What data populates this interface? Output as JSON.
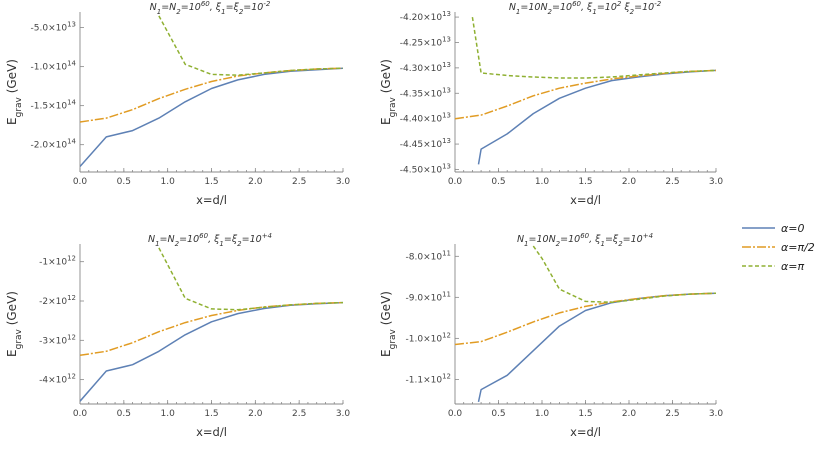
{
  "legend": [
    {
      "label": "α=0",
      "color": "#5E81B5",
      "dash": ""
    },
    {
      "label": "α=π/2",
      "color": "#E19C24",
      "dash": "9,2,2,2"
    },
    {
      "label": "α=π",
      "color": "#8FB032",
      "dash": "4,2.5"
    }
  ],
  "chart_data": [
    {
      "type": "line",
      "title": "N1=N2=10^60,  ξ1=ξ2=10^-2",
      "xlabel": "x=d/l",
      "ylabel": "Egrav (GeV)",
      "xlim": [
        0,
        3
      ],
      "ylim": [
        -235000000000000.0,
        -30000000000000.0
      ],
      "xticks": [
        "0.0",
        "0.5",
        "1.0",
        "1.5",
        "2.0",
        "2.5",
        "3.0"
      ],
      "yticks": [
        {
          "v": -50000000000000.0,
          "m": "-5.0",
          "e": "13"
        },
        {
          "v": -100000000000000.0,
          "m": "-1.0",
          "e": "14"
        },
        {
          "v": -150000000000000.0,
          "m": "-1.5",
          "e": "14"
        },
        {
          "v": -200000000000000.0,
          "m": "-2.0",
          "e": "14"
        }
      ],
      "series": [
        {
          "name": "α=0",
          "x": [
            0,
            0.3,
            0.6,
            0.9,
            1.2,
            1.5,
            1.8,
            2.1,
            2.4,
            2.7,
            3.0
          ],
          "y": [
            -228000000000000.0,
            -190000000000000.0,
            -182000000000000.0,
            -166000000000000.0,
            -145000000000000.0,
            -128000000000000.0,
            -117000000000000.0,
            -110000000000000.0,
            -106000000000000.0,
            -104000000000000.0,
            -102000000000000.0
          ]
        },
        {
          "name": "α=π/2",
          "x": [
            0,
            0.3,
            0.6,
            0.9,
            1.2,
            1.5,
            1.8,
            2.1,
            2.4,
            2.7,
            3.0
          ],
          "y": [
            -171000000000000.0,
            -166000000000000.0,
            -155000000000000.0,
            -141000000000000.0,
            -129000000000000.0,
            -119000000000000.0,
            -112000000000000.0,
            -108000000000000.0,
            -105000000000000.0,
            -103000000000000.0,
            -102000000000000.0
          ]
        },
        {
          "name": "α=π",
          "x": [
            0.9,
            1.2,
            1.5,
            1.8,
            2.1,
            2.4,
            2.7,
            3.0
          ],
          "y": [
            -35000000000000.0,
            -97000000000000.0,
            -110000000000000.0,
            -111000000000000.0,
            -108000000000000.0,
            -105000000000000.0,
            -103000000000000.0,
            -102000000000000.0
          ]
        }
      ]
    },
    {
      "type": "line",
      "title": "N1=10N2=10^60,  ξ1=10^2 ξ2=10^-2",
      "xlabel": "x=d/l",
      "ylabel": "Egrav (GeV)",
      "xlim": [
        0,
        3
      ],
      "ylim": [
        -45050000000000.0,
        -41900000000000.0
      ],
      "xticks": [
        "0.0",
        "0.5",
        "1.0",
        "1.5",
        "2.0",
        "2.5",
        "3.0"
      ],
      "yticks": [
        {
          "v": -42000000000000.0,
          "m": "-4.20",
          "e": "13"
        },
        {
          "v": -42500000000000.0,
          "m": "-4.25",
          "e": "13"
        },
        {
          "v": -43000000000000.0,
          "m": "-4.30",
          "e": "13"
        },
        {
          "v": -43500000000000.0,
          "m": "-4.35",
          "e": "13"
        },
        {
          "v": -44000000000000.0,
          "m": "-4.40",
          "e": "13"
        },
        {
          "v": -44500000000000.0,
          "m": "-4.45",
          "e": "13"
        },
        {
          "v": -45000000000000.0,
          "m": "-4.50",
          "e": "13"
        }
      ],
      "series": [
        {
          "name": "α=0",
          "x": [
            0.27,
            0.3,
            0.6,
            0.9,
            1.2,
            1.5,
            1.8,
            2.1,
            2.4,
            2.7,
            3.0
          ],
          "y": [
            -44900000000000.0,
            -44600000000000.0,
            -44300000000000.0,
            -43900000000000.0,
            -43600000000000.0,
            -43400000000000.0,
            -43250000000000.0,
            -43180000000000.0,
            -43120000000000.0,
            -43080000000000.0,
            -43050000000000.0
          ]
        },
        {
          "name": "α=π/2",
          "x": [
            0,
            0.3,
            0.6,
            0.9,
            1.2,
            1.5,
            1.8,
            2.1,
            2.4,
            2.7,
            3.0
          ],
          "y": [
            -44000000000000.0,
            -43930000000000.0,
            -43750000000000.0,
            -43550000000000.0,
            -43400000000000.0,
            -43300000000000.0,
            -43220000000000.0,
            -43160000000000.0,
            -43110000000000.0,
            -43070000000000.0,
            -43050000000000.0
          ]
        },
        {
          "name": "α=π",
          "x": [
            0.2,
            0.3,
            0.6,
            0.9,
            1.2,
            1.5,
            1.8,
            2.1,
            2.4,
            2.7,
            3.0
          ],
          "y": [
            -42000000000000.0,
            -43100000000000.0,
            -43150000000000.0,
            -43180000000000.0,
            -43200000000000.0,
            -43200000000000.0,
            -43180000000000.0,
            -43140000000000.0,
            -43100000000000.0,
            -43070000000000.0,
            -43050000000000.0
          ]
        }
      ]
    },
    {
      "type": "line",
      "title": "N1=N2=10^60,  ξ1=ξ2=10^+4",
      "xlabel": "x=d/l",
      "ylabel": "Egrav (GeV)",
      "xlim": [
        0,
        3
      ],
      "ylim": [
        -4620000000000.0,
        -550000000000.0
      ],
      "xticks": [
        "0.0",
        "0.5",
        "1.0",
        "1.5",
        "2.0",
        "2.5",
        "3.0"
      ],
      "yticks": [
        {
          "v": -1000000000000.0,
          "m": "-1",
          "e": "12"
        },
        {
          "v": -2000000000000.0,
          "m": "-2",
          "e": "12"
        },
        {
          "v": -3000000000000.0,
          "m": "-3",
          "e": "12"
        },
        {
          "v": -4000000000000.0,
          "m": "-4",
          "e": "12"
        }
      ],
      "series": [
        {
          "name": "α=0",
          "x": [
            0,
            0.3,
            0.6,
            0.9,
            1.2,
            1.5,
            1.8,
            2.1,
            2.4,
            2.7,
            3.0
          ],
          "y": [
            -4550000000000.0,
            -3780000000000.0,
            -3620000000000.0,
            -3280000000000.0,
            -2860000000000.0,
            -2530000000000.0,
            -2320000000000.0,
            -2190000000000.0,
            -2110000000000.0,
            -2070000000000.0,
            -2040000000000.0
          ]
        },
        {
          "name": "α=π/2",
          "x": [
            0,
            0.3,
            0.6,
            0.9,
            1.2,
            1.5,
            1.8,
            2.1,
            2.4,
            2.7,
            3.0
          ],
          "y": [
            -3380000000000.0,
            -3280000000000.0,
            -3060000000000.0,
            -2780000000000.0,
            -2550000000000.0,
            -2370000000000.0,
            -2240000000000.0,
            -2150000000000.0,
            -2100000000000.0,
            -2060000000000.0,
            -2040000000000.0
          ]
        },
        {
          "name": "α=π",
          "x": [
            0.9,
            1.2,
            1.5,
            1.8,
            2.1,
            2.4,
            2.7,
            3.0
          ],
          "y": [
            -650000000000.0,
            -1930000000000.0,
            -2200000000000.0,
            -2220000000000.0,
            -2160000000000.0,
            -2100000000000.0,
            -2060000000000.0,
            -2040000000000.0
          ]
        }
      ]
    },
    {
      "type": "line",
      "title": "N1=10N2=10^60,  ξ1=ξ2=10^+4",
      "xlabel": "x=d/l",
      "ylabel": "Egrav (GeV)",
      "xlim": [
        0,
        3
      ],
      "ylim": [
        -1160000000000.0,
        -770000000000.0
      ],
      "xticks": [
        "0.0",
        "0.5",
        "1.0",
        "1.5",
        "2.0",
        "2.5",
        "3.0"
      ],
      "yticks": [
        {
          "v": -800000000000.0,
          "m": "-8.0",
          "e": "11"
        },
        {
          "v": -900000000000.0,
          "m": "-9.0",
          "e": "11"
        },
        {
          "v": -1000000000000.0,
          "m": "-1.0",
          "e": "12"
        },
        {
          "v": -1100000000000.0,
          "m": "-1.1",
          "e": "12"
        }
      ],
      "series": [
        {
          "name": "α=0",
          "x": [
            0.27,
            0.3,
            0.6,
            0.9,
            1.2,
            1.5,
            1.8,
            2.1,
            2.4,
            2.7,
            3.0
          ],
          "y": [
            -1155000000000.0,
            -1125000000000.0,
            -1090000000000.0,
            -1030000000000.0,
            -970000000000.0,
            -932000000000.0,
            -913000000000.0,
            -903000000000.0,
            -896000000000.0,
            -892000000000.0,
            -890000000000.0
          ]
        },
        {
          "name": "α=π/2",
          "x": [
            0,
            0.3,
            0.6,
            0.9,
            1.2,
            1.5,
            1.8,
            2.1,
            2.4,
            2.7,
            3.0
          ],
          "y": [
            -1015000000000.0,
            -1008000000000.0,
            -985000000000.0,
            -960000000000.0,
            -938000000000.0,
            -922000000000.0,
            -911000000000.0,
            -903000000000.0,
            -896000000000.0,
            -892000000000.0,
            -890000000000.0
          ]
        },
        {
          "name": "α=π",
          "x": [
            0.9,
            1.0,
            1.2,
            1.5,
            1.8,
            2.1,
            2.4,
            2.7,
            3.0
          ],
          "y": [
            -775000000000.0,
            -805000000000.0,
            -880000000000.0,
            -910000000000.0,
            -912000000000.0,
            -905000000000.0,
            -897000000000.0,
            -892000000000.0,
            -890000000000.0
          ]
        }
      ]
    }
  ]
}
